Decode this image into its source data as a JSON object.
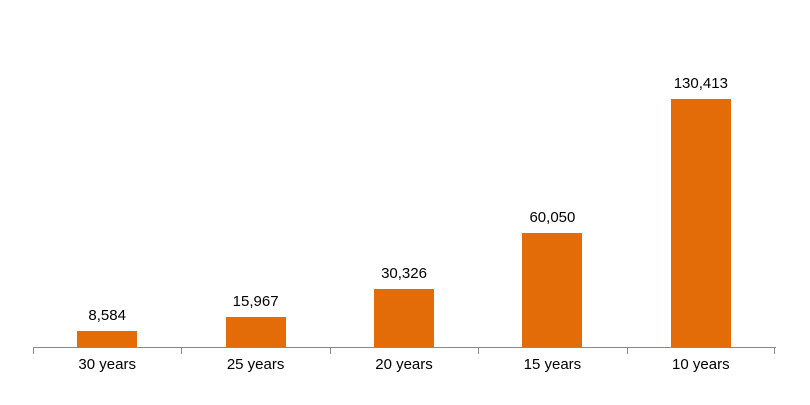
{
  "chart_data": {
    "type": "bar",
    "title": "",
    "xlabel": "",
    "ylabel": "",
    "categories": [
      "30 years",
      "25 years",
      "20 years",
      "15 years",
      "10 years"
    ],
    "values": [
      8584,
      15967,
      30326,
      60050,
      130413
    ],
    "value_labels": [
      "8,584",
      "15,967",
      "30,326",
      "60,050",
      "130,413"
    ],
    "ylim": [
      0,
      130413
    ],
    "grid": false,
    "legend": "none",
    "bar_color": "#E36C09",
    "axis_color": "#898989",
    "text_color": "#000000"
  }
}
